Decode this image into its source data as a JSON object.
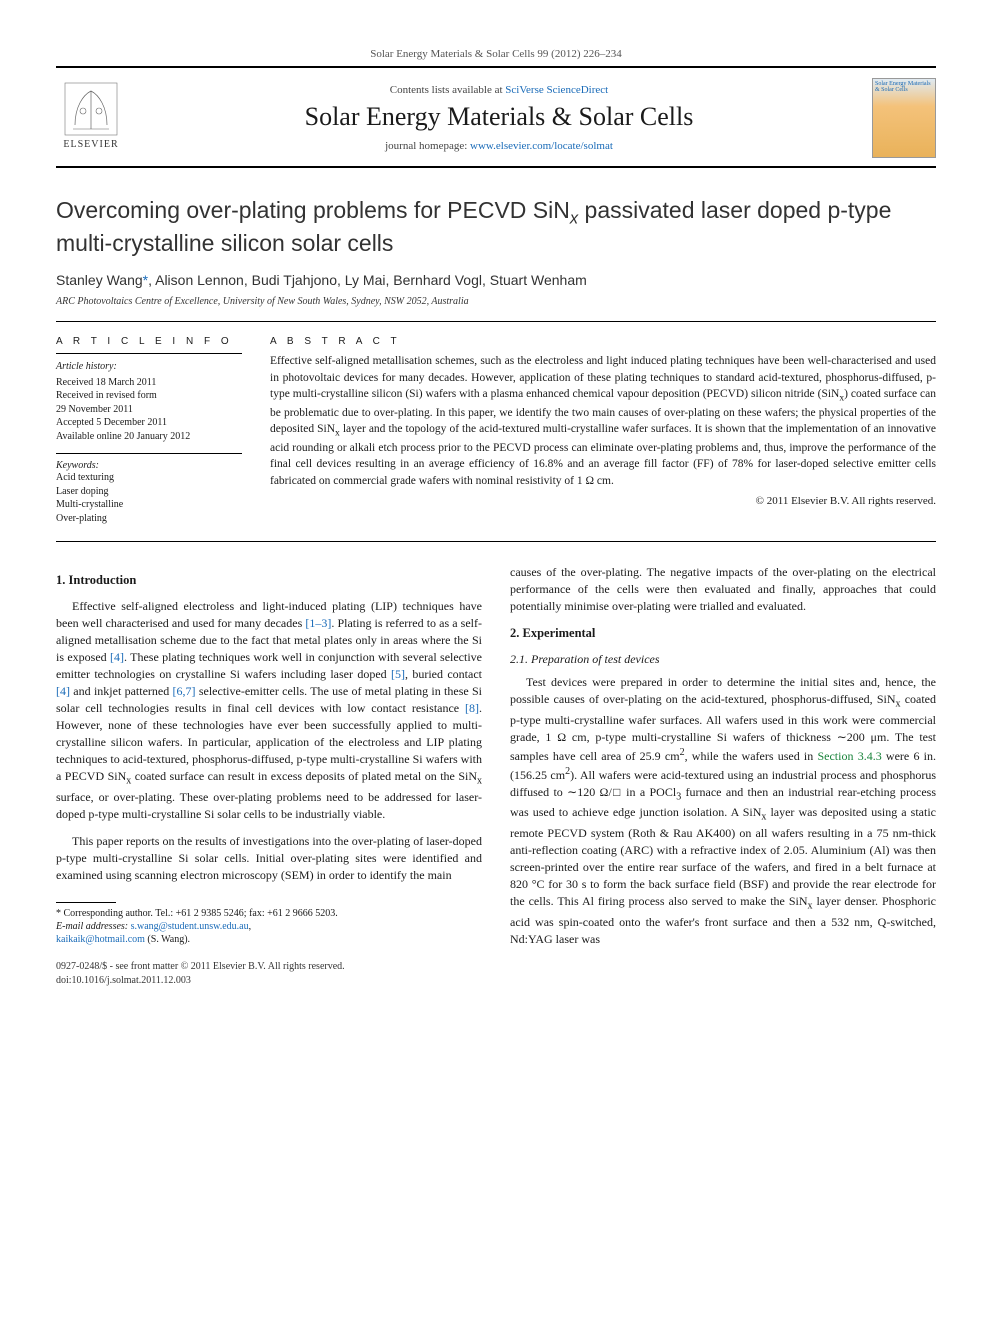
{
  "running_head": "Solar Energy Materials & Solar Cells 99 (2012) 226–234",
  "header": {
    "contents_prefix": "Contents lists available at ",
    "contents_link": "SciVerse ScienceDirect",
    "journal": "Solar Energy Materials & Solar Cells",
    "homepage_prefix": "journal homepage: ",
    "homepage_link": "www.elsevier.com/locate/solmat",
    "publisher_brand": "ELSEVIER",
    "cover_caption": "Solar Energy Materials & Solar Cells"
  },
  "title_html": "Overcoming over-plating problems for PECVD SiN<sub>x</sub> passivated laser doped p-type multi-crystalline silicon solar cells",
  "authors_html": "Stanley Wang<span class=\"corr\">*</span>, Alison Lennon, Budi Tjahjono, Ly Mai, Bernhard Vogl, Stuart Wenham",
  "affiliation": "ARC Photovoltaics Centre of Excellence, University of New South Wales, Sydney, NSW 2052, Australia",
  "article_info": {
    "heading": "A R T I C L E   I N F O",
    "history_heading": "Article history:",
    "history": [
      "Received 18 March 2011",
      "Received in revised form",
      "29 November 2011",
      "Accepted 5 December 2011",
      "Available online 20 January 2012"
    ],
    "keywords_heading": "Keywords:",
    "keywords": [
      "Acid texturing",
      "Laser doping",
      "Multi-crystalline",
      "Over-plating"
    ]
  },
  "abstract": {
    "heading": "A B S T R A C T",
    "text_html": "Effective self-aligned metallisation schemes, such as the electroless and light induced plating techniques have been well-characterised and used in photovoltaic devices for many decades. However, application of these plating techniques to standard acid-textured, phosphorus-diffused, p-type multi-crystalline silicon (Si) wafers with a plasma enhanced chemical vapour deposition (PECVD) silicon nitride (SiN<sub>x</sub>) coated surface can be problematic due to over-plating. In this paper, we identify the two main causes of over-plating on these wafers; the physical properties of the deposited SiN<sub>x</sub> layer and the topology of the acid-textured multi-crystalline wafer surfaces. It is shown that the implementation of an innovative acid rounding or alkali etch process prior to the PECVD process can eliminate over-plating problems and, thus, improve the performance of the final cell devices resulting in an average efficiency of 16.8% and an average fill factor (FF) of 78% for laser-doped selective emitter cells fabricated on commercial grade wafers with nominal resistivity of 1 Ω cm.",
    "copyright": "© 2011 Elsevier B.V. All rights reserved."
  },
  "body": {
    "s1_heading": "1.  Introduction",
    "s1_p1_html": "Effective self-aligned electroless and light-induced plating (LIP) techniques have been well characterised and used for many decades <a class=\"ref\" href=\"#\">[1–3]</a>. Plating is referred to as a self-aligned metallisation scheme due to the fact that metal plates only in areas where the Si is exposed <a class=\"ref\" href=\"#\">[4]</a>. These plating techniques work well in conjunction with several selective emitter technologies on crystalline Si wafers including laser doped <a class=\"ref\" href=\"#\">[5]</a>, buried contact <a class=\"ref\" href=\"#\">[4]</a> and inkjet patterned <a class=\"ref\" href=\"#\">[6,7]</a> selective-emitter cells. The use of metal plating in these Si solar cell technologies results in final cell devices with low contact resistance <a class=\"ref\" href=\"#\">[8]</a>. However, none of these technologies have ever been successfully applied to multi-crystalline silicon wafers. In particular, application of the electroless and LIP plating techniques to acid-textured, phosphorus-diffused, p-type multi-crystalline Si wafers with a PECVD SiN<sub>x</sub> coated surface can result in excess deposits of plated metal on the SiN<sub>x</sub> surface, or over-plating. These over-plating problems need to be addressed for laser-doped p-type multi-crystalline Si solar cells to be industrially viable.",
    "s1_p2_html": "This paper reports on the results of investigations into the over-plating of laser-doped p-type multi-crystalline Si solar cells. Initial over-plating sites were identified and examined using scanning electron microscopy (SEM) in order to identify the main",
    "s1_p3_html": "causes of the over-plating. The negative impacts of the over-plating on the electrical performance of the cells were then evaluated and finally, approaches that could potentially minimise over-plating were trialled and evaluated.",
    "s2_heading": "2.  Experimental",
    "s2_1_heading": "2.1.  Preparation of test devices",
    "s2_1_p1_html": "Test devices were prepared in order to determine the initial sites and, hence, the possible causes of over-plating on the acid-textured, phosphorus-diffused, SiN<sub>x</sub> coated p-type multi-crystalline wafer surfaces. All wafers used in this work were commercial grade, 1 Ω cm, p-type multi-crystalline Si wafers of thickness ∼200 μm. The test samples have cell area of 25.9 cm<sup>2</sup>, while the wafers used in <a class=\"xref\" href=\"#\">Section 3.4.3</a> were 6 in. (156.25 cm<sup>2</sup>). All wafers were acid-textured using an industrial process and phosphorus diffused to ∼120 Ω/□ in a POCl<sub>3</sub> furnace and then an industrial rear-etching process was used to achieve edge junction isolation. A SiN<sub>x</sub> layer was deposited using a static remote PECVD system (Roth & Rau AK400) on all wafers resulting in a 75 nm-thick anti-reflection coating (ARC) with a refractive index of 2.05. Aluminium (Al) was then screen-printed over the entire rear surface of the wafers, and fired in a belt furnace at 820 °C for 30 s to form the back surface field (BSF) and provide the rear electrode for the cells. This Al firing process also served to make the SiN<sub>x</sub> layer denser. Phosphoric acid was spin-coated onto the wafer's front surface and then a 532 nm, Q-switched, Nd:YAG laser was"
  },
  "footnotes": {
    "corr_html": "* Corresponding author. Tel.: +61 2 9385 5246; fax: +61 2 9666 5203.",
    "email_label": "E-mail addresses:",
    "email1": "s.wang@student.unsw.edu.au",
    "email2": "kaikaik@hotmail.com",
    "email_tail": " (S. Wang)."
  },
  "footer": {
    "left1": "0927-0248/$ - see front matter © 2011 Elsevier B.V. All rights reserved.",
    "left2": "doi:10.1016/j.solmat.2011.12.003"
  },
  "colors": {
    "link_blue": "#1a6bb8",
    "xref_green": "#18833a",
    "text": "#1a1a1a",
    "rule": "#000000"
  }
}
